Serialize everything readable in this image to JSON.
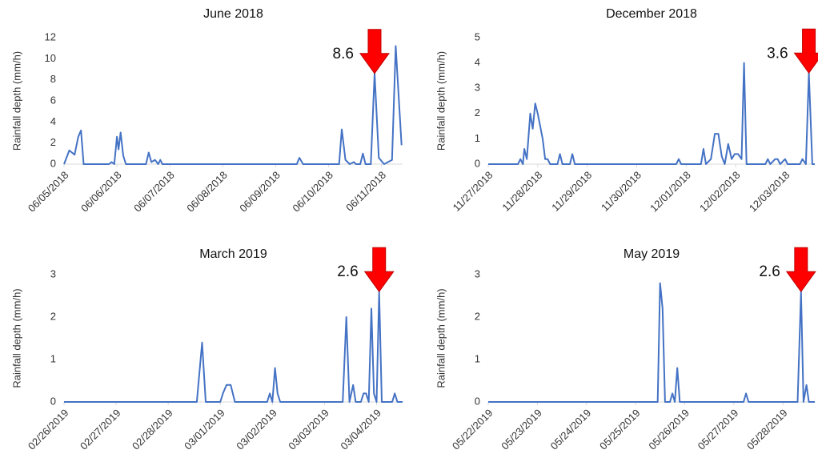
{
  "chart_data": [
    {
      "type": "line",
      "title": "June 2018",
      "ylabel": "Rainfall depth (mm/h)",
      "xlim": [
        0,
        6.4
      ],
      "ylim": [
        0,
        12
      ],
      "yticks": [
        0,
        2,
        4,
        6,
        8,
        10,
        12
      ],
      "xticks": [
        {
          "value": 0,
          "label": "06/05/2018"
        },
        {
          "value": 1,
          "label": "06/06/2018"
        },
        {
          "value": 2,
          "label": "06/07/2018"
        },
        {
          "value": 3,
          "label": "06/08/2018"
        },
        {
          "value": 4,
          "label": "06/09/2018"
        },
        {
          "value": 5,
          "label": "06/10/2018"
        },
        {
          "value": 6,
          "label": "06/11/2018"
        }
      ],
      "series": [
        {
          "color": "#4472c4",
          "x": [
            0,
            0.1,
            0.2,
            0.27,
            0.32,
            0.37,
            0.85,
            0.9,
            0.95,
            1.0,
            1.03,
            1.07,
            1.12,
            1.17,
            1.55,
            1.6,
            1.65,
            1.72,
            1.78,
            1.82,
            1.86,
            4.4,
            4.45,
            4.52,
            5.2,
            5.25,
            5.32,
            5.4,
            5.48,
            5.52,
            5.6,
            5.65,
            5.7,
            5.8,
            5.87,
            5.95,
            6.05,
            6.2,
            6.27,
            6.38
          ],
          "values": [
            0,
            1.3,
            0.9,
            2.6,
            3.2,
            0,
            0,
            0.2,
            0,
            2.6,
            1.4,
            3,
            0.8,
            0,
            0,
            1.1,
            0.2,
            0.4,
            0,
            0.4,
            0,
            0,
            0.6,
            0,
            0,
            3.3,
            0.4,
            0,
            0.2,
            0,
            0,
            1,
            0,
            0,
            8.6,
            0.6,
            0,
            0.4,
            11.2,
            1.8
          ]
        }
      ],
      "annotation": {
        "text": "8.6",
        "x": 5.87,
        "y": 8.6
      }
    },
    {
      "type": "line",
      "title": "December 2018",
      "ylabel": "Rainfall depth (mm/h)",
      "xlim": [
        0,
        6.6
      ],
      "ylim": [
        0,
        5
      ],
      "yticks": [
        0,
        1,
        2,
        3,
        4,
        5
      ],
      "xticks": [
        {
          "value": 0,
          "label": "11/27/2018"
        },
        {
          "value": 1,
          "label": "11/28/2018"
        },
        {
          "value": 2,
          "label": "11/29/2018"
        },
        {
          "value": 3,
          "label": "11/30/2018"
        },
        {
          "value": 4,
          "label": "12/01/2018"
        },
        {
          "value": 5,
          "label": "12/02/2018"
        },
        {
          "value": 6,
          "label": "12/03/2018"
        }
      ],
      "series": [
        {
          "color": "#4472c4",
          "x": [
            0,
            0.6,
            0.65,
            0.7,
            0.73,
            0.78,
            0.85,
            0.9,
            0.95,
            1.0,
            1.05,
            1.1,
            1.15,
            1.2,
            1.25,
            1.4,
            1.45,
            1.5,
            1.65,
            1.7,
            1.75,
            3.8,
            3.85,
            3.9,
            4.3,
            4.35,
            4.4,
            4.5,
            4.58,
            4.65,
            4.72,
            4.78,
            4.85,
            4.92,
            4.98,
            5.05,
            5.12,
            5.17,
            5.22,
            5.6,
            5.65,
            5.7,
            5.8,
            5.85,
            5.9,
            6.0,
            6.05,
            6.3,
            6.35,
            6.42,
            6.48,
            6.55,
            6.6
          ],
          "values": [
            0,
            0,
            0.2,
            0,
            0.6,
            0.2,
            2,
            1.4,
            2.4,
            2,
            1.5,
            1,
            0.2,
            0.2,
            0,
            0,
            0.4,
            0,
            0,
            0.4,
            0,
            0,
            0.2,
            0,
            0,
            0.6,
            0,
            0.2,
            1.2,
            1.2,
            0.3,
            0,
            0.8,
            0.2,
            0.4,
            0.4,
            0.2,
            4,
            0,
            0,
            0.2,
            0,
            0.2,
            0.2,
            0,
            0.2,
            0,
            0,
            0.2,
            0,
            3.6,
            0,
            0
          ]
        }
      ],
      "annotation": {
        "text": "3.6",
        "x": 6.48,
        "y": 3.6
      }
    },
    {
      "type": "line",
      "title": "March 2019",
      "ylabel": "Rainfall depth (mm/h)",
      "xlim": [
        0,
        6.5
      ],
      "ylim": [
        0,
        3
      ],
      "yticks": [
        0,
        1,
        2,
        3
      ],
      "xticks": [
        {
          "value": 0,
          "label": "02/26/2019"
        },
        {
          "value": 1,
          "label": "02/27/2019"
        },
        {
          "value": 2,
          "label": "02/28/2019"
        },
        {
          "value": 3,
          "label": "03/01/2019"
        },
        {
          "value": 4,
          "label": "03/02/2019"
        },
        {
          "value": 5,
          "label": "03/03/2019"
        },
        {
          "value": 6,
          "label": "03/04/2019"
        }
      ],
      "series": [
        {
          "color": "#4472c4",
          "x": [
            0,
            2.55,
            2.65,
            2.72,
            3.0,
            3.05,
            3.12,
            3.2,
            3.28,
            3.9,
            3.95,
            4.0,
            4.05,
            4.1,
            4.15,
            5.35,
            5.42,
            5.48,
            5.55,
            5.6,
            5.7,
            5.75,
            5.8,
            5.85,
            5.9,
            5.95,
            6.0,
            6.05,
            6.1,
            6.3,
            6.35,
            6.4,
            6.5
          ],
          "values": [
            0,
            0,
            1.4,
            0,
            0,
            0.2,
            0.4,
            0.4,
            0,
            0,
            0.2,
            0,
            0.8,
            0.2,
            0,
            0,
            2,
            0,
            0.4,
            0,
            0,
            0.2,
            0.2,
            0,
            2.2,
            0.2,
            0,
            2.6,
            0,
            0,
            0.2,
            0,
            0
          ]
        }
      ],
      "annotation": {
        "text": "2.6",
        "x": 6.05,
        "y": 2.6
      }
    },
    {
      "type": "line",
      "title": "May 2019",
      "ylabel": "Rainfall depth (mm/h)",
      "xlim": [
        0,
        6.65
      ],
      "ylim": [
        0,
        3
      ],
      "yticks": [
        0,
        1,
        2,
        3
      ],
      "xticks": [
        {
          "value": 0,
          "label": "05/22/2019"
        },
        {
          "value": 1,
          "label": "05/23/2019"
        },
        {
          "value": 2,
          "label": "05/24/2019"
        },
        {
          "value": 3,
          "label": "05/25/2019"
        },
        {
          "value": 4,
          "label": "05/26/2019"
        },
        {
          "value": 5,
          "label": "05/27/2019"
        },
        {
          "value": 6,
          "label": "05/28/2019"
        }
      ],
      "series": [
        {
          "color": "#4472c4",
          "x": [
            0,
            3.45,
            3.5,
            3.55,
            3.6,
            3.7,
            3.75,
            3.8,
            3.85,
            3.9,
            5.2,
            5.25,
            5.3,
            6.3,
            6.37,
            6.42,
            6.48,
            6.53,
            6.65
          ],
          "values": [
            0,
            0,
            2.8,
            2.2,
            0,
            0,
            0.2,
            0,
            0.8,
            0,
            0,
            0.2,
            0,
            0,
            2.6,
            0,
            0.4,
            0,
            0
          ]
        }
      ],
      "annotation": {
        "text": "2.6",
        "x": 6.37,
        "y": 2.6
      }
    }
  ]
}
